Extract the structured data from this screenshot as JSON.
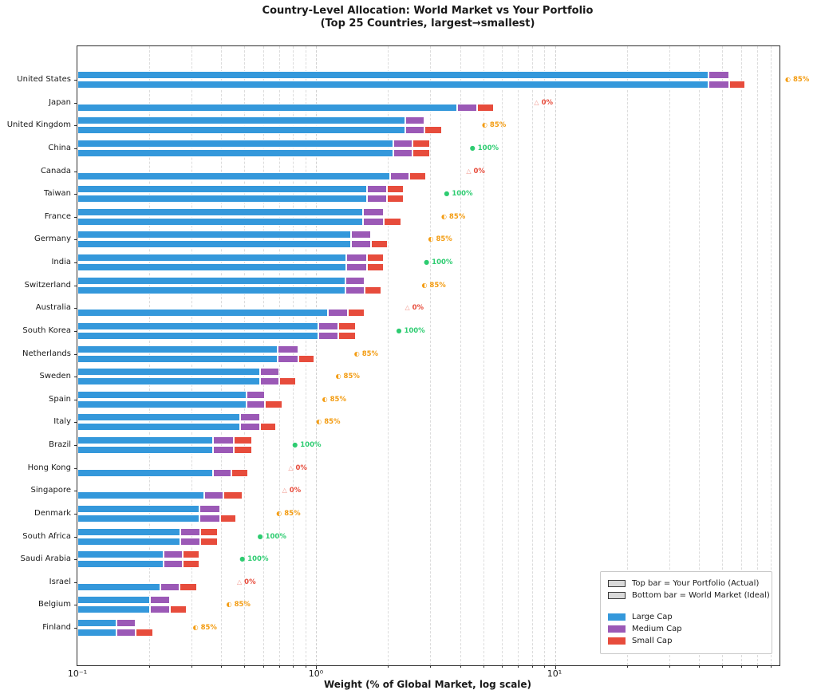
{
  "title": {
    "line1": "Country-Level Allocation: World Market vs Your Portfolio",
    "line2": "(Top 25 Countries, largest→smallest)"
  },
  "axis": {
    "xlabel": "Weight (% of Global Market, log scale)",
    "ticks": [
      "10⁻¹",
      "10⁰",
      "10¹"
    ],
    "tick_values": [
      0.1,
      1,
      10
    ]
  },
  "legend": {
    "items": [
      {
        "label": "Top bar = Your Portfolio (Actual)",
        "swatch": "gray"
      },
      {
        "label": "Bottom bar = World Market (Ideal)",
        "swatch": "gray"
      },
      {
        "label": "Large Cap",
        "swatch": "large"
      },
      {
        "label": "Medium Cap",
        "swatch": "medium"
      },
      {
        "label": "Small Cap",
        "swatch": "small"
      }
    ]
  },
  "chart_data": {
    "type": "bar",
    "orientation": "horizontal",
    "log_x": true,
    "xlim": [
      0.1,
      87
    ],
    "grid": "dashed-vertical-minor-and-major",
    "title": "Country-Level Allocation: World Market vs Your Portfolio (Top 25 Countries, largest→smallest)",
    "xlabel": "Weight (% of Global Market, log scale)",
    "segments": [
      "Large Cap",
      "Medium Cap",
      "Small Cap"
    ],
    "series_colors": {
      "large": "#3498db",
      "medium": "#9b59b6",
      "small": "#e74c3c",
      "gray": "#d9d9d9"
    },
    "bar_meaning": {
      "top": "Your Portfolio (Actual)",
      "bottom": "World Market (Ideal)"
    },
    "coverage_styles": {
      "85": {
        "icon": "◐",
        "text": "85%",
        "color": "#f39c12",
        "icon_color": "#f39c12"
      },
      "100": {
        "icon": "●",
        "text": "100%",
        "color": "#2ecc71",
        "icon_color": "#2ecc71"
      },
      "0": {
        "icon": "△",
        "text": "0%",
        "color": "#e74c3c",
        "icon_color": "#f1948a"
      }
    },
    "countries": [
      {
        "name": "United States",
        "coverage": 85,
        "market": [
          43.9,
          9.7,
          8.9
        ],
        "portfolio": [
          43.9,
          9.7,
          0
        ]
      },
      {
        "name": "Japan",
        "coverage": 0,
        "market": [
          3.9,
          0.8,
          0.86
        ],
        "portfolio": [
          0,
          0,
          0
        ]
      },
      {
        "name": "United Kingdom",
        "coverage": 85,
        "market": [
          2.36,
          0.48,
          0.52
        ],
        "portfolio": [
          2.36,
          0.48,
          0
        ]
      },
      {
        "name": "China",
        "coverage": 100,
        "market": [
          2.1,
          0.43,
          0.46
        ],
        "portfolio": [
          2.1,
          0.43,
          0.46
        ]
      },
      {
        "name": "Canada",
        "coverage": 0,
        "market": [
          2.04,
          0.41,
          0.44
        ],
        "portfolio": [
          0,
          0,
          0
        ]
      },
      {
        "name": "Taiwan",
        "coverage": 100,
        "market": [
          1.63,
          0.34,
          0.36
        ],
        "portfolio": [
          1.63,
          0.34,
          0.36
        ]
      },
      {
        "name": "France",
        "coverage": 85,
        "market": [
          1.57,
          0.35,
          0.35
        ],
        "portfolio": [
          1.57,
          0.35,
          0
        ]
      },
      {
        "name": "Germany",
        "coverage": 85,
        "market": [
          1.4,
          0.3,
          0.3
        ],
        "portfolio": [
          1.4,
          0.3,
          0
        ]
      },
      {
        "name": "India",
        "coverage": 100,
        "market": [
          1.34,
          0.29,
          0.29
        ],
        "portfolio": [
          1.34,
          0.29,
          0.29
        ]
      },
      {
        "name": "Switzerland",
        "coverage": 85,
        "market": [
          1.33,
          0.27,
          0.28
        ],
        "portfolio": [
          1.33,
          0.27,
          0
        ]
      },
      {
        "name": "Australia",
        "coverage": 0,
        "market": [
          1.12,
          0.24,
          0.24
        ],
        "portfolio": [
          0,
          0,
          0
        ]
      },
      {
        "name": "South Korea",
        "coverage": 100,
        "market": [
          1.02,
          0.22,
          0.23
        ],
        "portfolio": [
          1.02,
          0.22,
          0.23
        ]
      },
      {
        "name": "Netherlands",
        "coverage": 85,
        "market": [
          0.69,
          0.15,
          0.14
        ],
        "portfolio": [
          0.69,
          0.15,
          0
        ]
      },
      {
        "name": "Sweden",
        "coverage": 85,
        "market": [
          0.58,
          0.12,
          0.12
        ],
        "portfolio": [
          0.58,
          0.12,
          0
        ]
      },
      {
        "name": "Spain",
        "coverage": 85,
        "market": [
          0.51,
          0.1,
          0.11
        ],
        "portfolio": [
          0.51,
          0.1,
          0
        ]
      },
      {
        "name": "Italy",
        "coverage": 85,
        "market": [
          0.48,
          0.1,
          0.1
        ],
        "portfolio": [
          0.48,
          0.1,
          0
        ]
      },
      {
        "name": "Brazil",
        "coverage": 100,
        "market": [
          0.37,
          0.08,
          0.09
        ],
        "portfolio": [
          0.37,
          0.08,
          0.09
        ]
      },
      {
        "name": "Hong Kong",
        "coverage": 0,
        "market": [
          0.37,
          0.07,
          0.08
        ],
        "portfolio": [
          0,
          0,
          0
        ]
      },
      {
        "name": "Singapore",
        "coverage": 0,
        "market": [
          0.34,
          0.07,
          0.08
        ],
        "portfolio": [
          0,
          0,
          0
        ]
      },
      {
        "name": "Denmark",
        "coverage": 85,
        "market": [
          0.325,
          0.07,
          0.068
        ],
        "portfolio": [
          0.325,
          0.07,
          0
        ]
      },
      {
        "name": "South Africa",
        "coverage": 100,
        "market": [
          0.27,
          0.057,
          0.059
        ],
        "portfolio": [
          0.27,
          0.057,
          0.059
        ]
      },
      {
        "name": "Saudi Arabia",
        "coverage": 100,
        "market": [
          0.23,
          0.046,
          0.049
        ],
        "portfolio": [
          0.23,
          0.046,
          0.049
        ]
      },
      {
        "name": "Israel",
        "coverage": 0,
        "market": [
          0.223,
          0.045,
          0.049
        ],
        "portfolio": [
          0,
          0,
          0
        ]
      },
      {
        "name": "Belgium",
        "coverage": 85,
        "market": [
          0.202,
          0.043,
          0.041
        ],
        "portfolio": [
          0.202,
          0.043,
          0
        ]
      },
      {
        "name": "Finland",
        "coverage": 85,
        "market": [
          0.146,
          0.03,
          0.031
        ],
        "portfolio": [
          0.146,
          0.03,
          0
        ]
      }
    ]
  }
}
